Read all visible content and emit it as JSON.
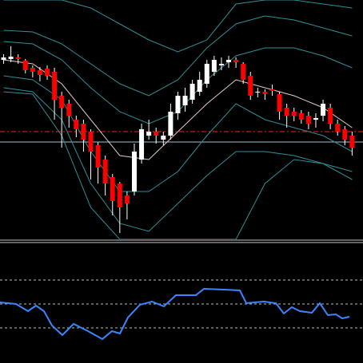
{
  "chart_data": [
    {
      "type": "candlestick",
      "ylim": [
        0,
        300
      ],
      "xlim": [
        -0.5,
        49.5
      ],
      "up_color": "#ffffff",
      "down_color": "#ff0000",
      "wick_color": "#ffffff",
      "open": [
        225,
        226,
        228,
        224,
        215,
        212,
        214,
        210,
        180,
        170,
        150,
        145,
        135,
        118,
        100,
        78,
        70,
        55,
        60,
        100,
        130,
        135,
        125,
        130,
        158,
        168,
        175,
        185,
        195,
        210,
        218,
        222,
        225,
        220,
        205,
        185,
        185,
        188,
        182,
        165,
        160,
        158,
        155,
        150,
        155,
        165,
        145,
        138,
        130
      ],
      "high": [
        232,
        242,
        232,
        226,
        218,
        216,
        218,
        215,
        185,
        175,
        155,
        150,
        138,
        122,
        105,
        82,
        72,
        60,
        120,
        145,
        150,
        140,
        135,
        170,
        185,
        190,
        200,
        210,
        225,
        230,
        228,
        230,
        228,
        222,
        210,
        190,
        188,
        194,
        185,
        170,
        165,
        162,
        160,
        158,
        175,
        170,
        150,
        142,
        135
      ],
      "low": [
        220,
        222,
        220,
        208,
        203,
        198,
        200,
        150,
        115,
        140,
        128,
        110,
        75,
        70,
        55,
        30,
        8,
        25,
        55,
        95,
        125,
        120,
        118,
        125,
        150,
        160,
        170,
        180,
        190,
        205,
        212,
        215,
        215,
        195,
        175,
        178,
        175,
        180,
        150,
        140,
        148,
        145,
        138,
        140,
        148,
        138,
        130,
        118,
        105
      ],
      "close": [
        228,
        229,
        226,
        212,
        210,
        206,
        205,
        175,
        165,
        155,
        138,
        125,
        110,
        90,
        70,
        48,
        40,
        45,
        110,
        138,
        135,
        130,
        130,
        160,
        180,
        180,
        195,
        200,
        220,
        225,
        220,
        225,
        222,
        200,
        180,
        185,
        182,
        186,
        160,
        155,
        155,
        150,
        145,
        152,
        170,
        145,
        135,
        125,
        115
      ],
      "bands": {
        "x": [
          0,
          4,
          8,
          12,
          16,
          20,
          24,
          28,
          32,
          36,
          40,
          44,
          48
        ],
        "series": [
          {
            "color": "#2f8f96",
            "values": [
              300,
              300,
              300,
              290,
              270,
              250,
              235,
              250,
              295,
              300,
              300,
              295,
              290
            ]
          },
          {
            "color": "#2f8f96",
            "values": [
              262,
              260,
              245,
              220,
              195,
              180,
              200,
              240,
              270,
              280,
              275,
              265,
              255
            ]
          },
          {
            "color": "#2f8f96",
            "values": [
              248,
              245,
              225,
              190,
              160,
              145,
              160,
              200,
              230,
              240,
              240,
              230,
              215
            ]
          },
          {
            "color": "#e8caca",
            "values": [
              225,
              220,
              195,
              150,
              105,
              100,
              135,
              170,
              200,
              190,
              180,
              165,
              140
            ]
          },
          {
            "color": "#2f8f96",
            "values": [
              205,
              200,
              175,
              110,
              60,
              60,
              85,
              130,
              170,
              150,
              140,
              130,
              110
            ]
          },
          {
            "color": "#2f8f96",
            "values": [
              190,
              185,
              150,
              70,
              20,
              10,
              45,
              80,
              110,
              110,
              105,
              95,
              75
            ]
          },
          {
            "color": "#2f8f96",
            "values": [
              185,
              182,
              130,
              40,
              0,
              0,
              0,
              0,
              0,
              70,
              100,
              95,
              85
            ]
          }
        ]
      },
      "levels": [
        {
          "value": 135,
          "color": "#ff2020",
          "style": "dashdot"
        },
        {
          "value": 122,
          "color": "#9fc4d0",
          "style": "solid"
        }
      ]
    },
    {
      "type": "line",
      "ylim": [
        0,
        150
      ],
      "xlim": [
        0,
        454
      ],
      "levels": [
        {
          "value": 104,
          "color": "#bbbbbb",
          "style": "dashed"
        },
        {
          "value": 74,
          "color": "#bbbbbb",
          "style": "dashed"
        },
        {
          "value": 44,
          "color": "#bbbbbb",
          "style": "dashed"
        }
      ],
      "x": [
        0,
        20,
        35,
        45,
        55,
        65,
        78,
        92,
        110,
        128,
        140,
        150,
        160,
        175,
        190,
        205,
        220,
        245,
        255,
        280,
        300,
        308,
        330,
        345,
        355,
        365,
        375,
        390,
        400,
        410,
        420,
        428,
        437
      ],
      "color": "#3a86ff",
      "values": [
        76,
        74,
        65,
        72,
        65,
        47,
        35,
        49,
        40,
        30,
        40,
        37,
        57,
        73,
        77,
        71,
        85,
        85,
        93,
        92,
        91,
        75,
        77,
        75,
        62,
        70,
        65,
        63,
        75,
        60,
        61,
        56,
        58
      ]
    }
  ]
}
